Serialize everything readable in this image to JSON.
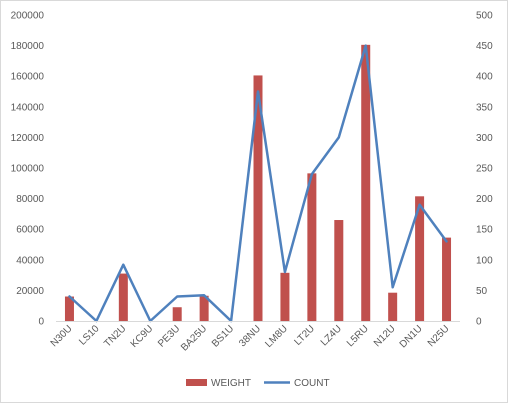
{
  "chart_data": {
    "type": "bar",
    "categories": [
      "N30U",
      "LS10",
      "TN2U",
      "KC9U",
      "PE3U",
      "BA25U",
      "BS1U",
      "38NU",
      "LM8U",
      "LT2U",
      "LZ4U",
      "L5RU",
      "N12U",
      "DN1U",
      "N25U"
    ],
    "series": [
      {
        "name": "WEIGHT",
        "type": "bar",
        "axis": "left",
        "color": "#c0504d",
        "values": [
          16000,
          0,
          31000,
          0,
          9000,
          16500,
          0,
          160500,
          31500,
          96500,
          66000,
          180500,
          18500,
          81500,
          54500
        ]
      },
      {
        "name": "COUNT",
        "type": "line",
        "axis": "right",
        "color": "#4f81bd",
        "values": [
          40,
          0,
          92,
          0,
          40,
          42,
          0,
          375,
          80,
          240,
          300,
          450,
          55,
          190,
          130
        ]
      }
    ],
    "y_left": {
      "min": 0,
      "max": 200000,
      "ticks": [
        "0",
        "20000",
        "40000",
        "60000",
        "80000",
        "100000",
        "120000",
        "140000",
        "160000",
        "180000",
        "200000"
      ]
    },
    "y_right": {
      "min": 0,
      "max": 500,
      "ticks": [
        "0",
        "50",
        "100",
        "150",
        "200",
        "250",
        "300",
        "350",
        "400",
        "450",
        "500"
      ]
    },
    "grid": false,
    "legend_position": "bottom"
  }
}
